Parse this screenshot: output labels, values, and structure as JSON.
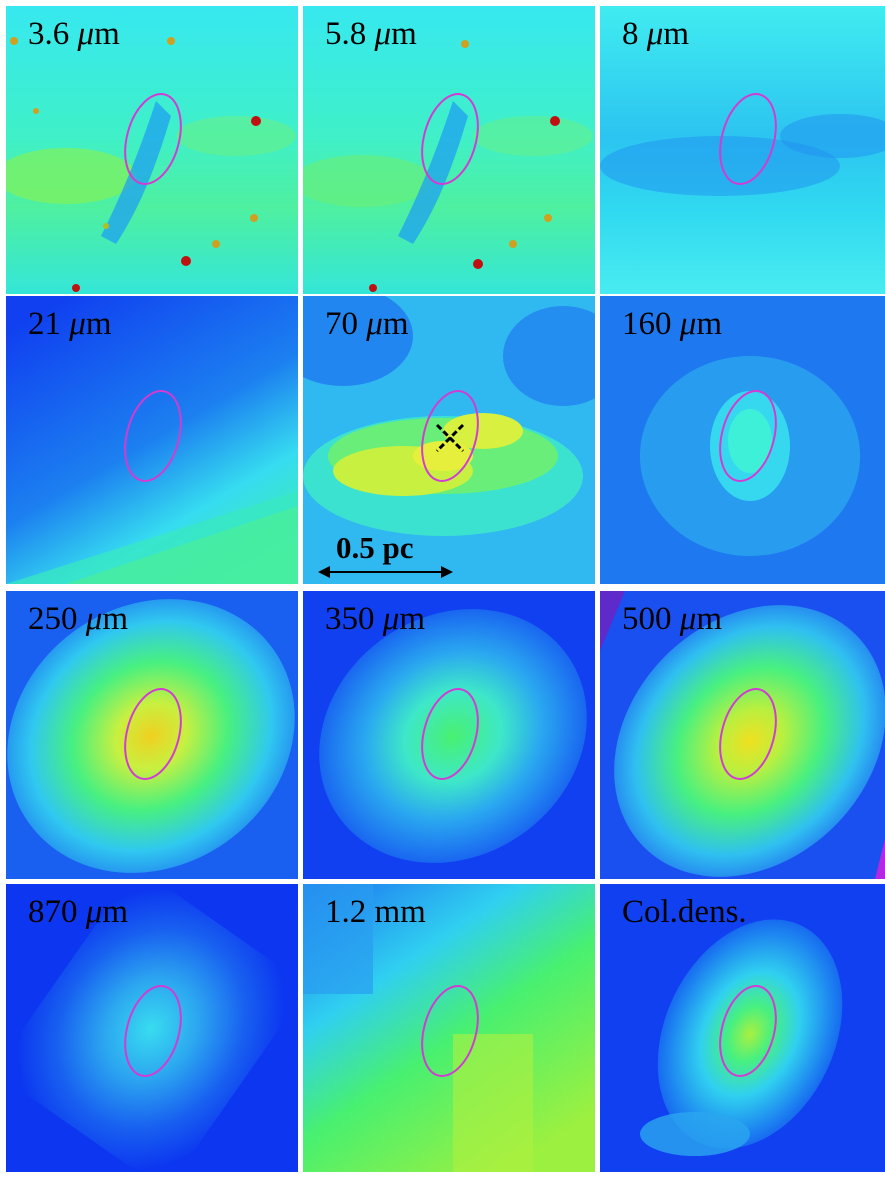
{
  "panels": [
    {
      "label": "3.6 ",
      "unit": "μm",
      "unit_italic": "μ",
      "unit_rest": "m",
      "theme": "irac"
    },
    {
      "label": "5.8 ",
      "unit_italic": "μ",
      "unit_rest": "m",
      "theme": "irac"
    },
    {
      "label": "8 ",
      "unit_italic": "μ",
      "unit_rest": "m",
      "theme": "irac8"
    },
    {
      "label": "21 ",
      "unit_italic": "μ",
      "unit_rest": "m",
      "theme": "msx"
    },
    {
      "label": "70 ",
      "unit_italic": "μ",
      "unit_rest": "m",
      "theme": "pacs70"
    },
    {
      "label": "160 ",
      "unit_italic": "μ",
      "unit_rest": "m",
      "theme": "pacs160"
    },
    {
      "label": "250 ",
      "unit_italic": "μ",
      "unit_rest": "m",
      "theme": "spire250"
    },
    {
      "label": "350 ",
      "unit_italic": "μ",
      "unit_rest": "m",
      "theme": "spire350"
    },
    {
      "label": "500 ",
      "unit_italic": "μ",
      "unit_rest": "m",
      "theme": "spire500"
    },
    {
      "label": "870 ",
      "unit_italic": "μ",
      "unit_rest": "m",
      "theme": "laboca"
    },
    {
      "label": "1.2 mm",
      "unit_italic": "",
      "unit_rest": "",
      "theme": "mambo"
    },
    {
      "label": "Col.dens.",
      "unit_italic": "",
      "unit_rest": "",
      "theme": "coldens"
    }
  ],
  "scalebar": {
    "label": "0.5 pc"
  },
  "colors": {
    "ellipse": "#d23cd2",
    "marker": "#000000",
    "separator": "#ffffff"
  }
}
